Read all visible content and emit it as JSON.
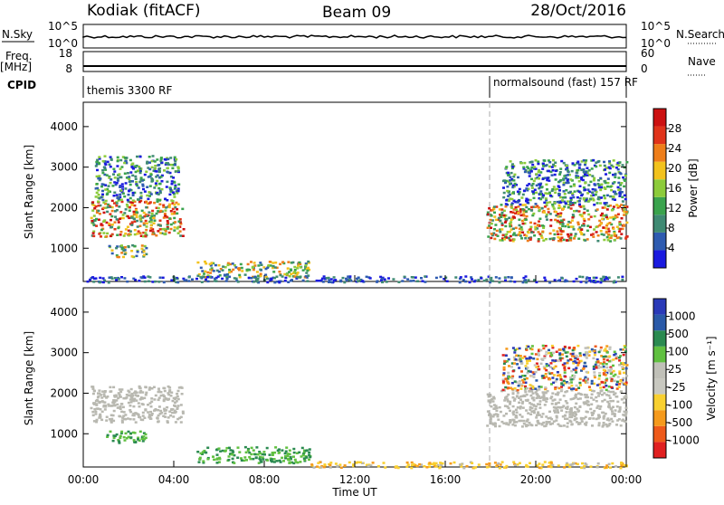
{
  "header": {
    "station": "Kodiak (fitACF)",
    "beam": "Beam 09",
    "date": "28/Oct/2016"
  },
  "top_panels": {
    "nsky_label": "N.Sky",
    "nsearch_label": "N.Search",
    "freq_label": "Freq.",
    "freq_unit": "[MHz]",
    "nave_label": "Nave",
    "cpid_label": "CPID",
    "nsky_ticks": [
      "10^5",
      "10^0"
    ],
    "nsearch_ticks": [
      "10^5",
      "10^0"
    ],
    "freq_ticks": [
      "18",
      "8"
    ],
    "nave_ticks": [
      "60",
      "0"
    ],
    "cpid_segments": [
      "themis 3300 RF",
      "normalsound (fast) 157 RF"
    ]
  },
  "colors": {
    "power": [
      "#1a1adf",
      "#2e5bb0",
      "#3f8a73",
      "#3aa34d",
      "#8ccb3a",
      "#f2c21d",
      "#ee7e1a",
      "#e0331a",
      "#cc1111"
    ],
    "velocity": [
      "#e02020",
      "#ee5a1a",
      "#f59a1c",
      "#f8d030",
      "#c8c8c0",
      "#c0c0b8",
      "#60c040",
      "#2a8a50",
      "#2a5aa8",
      "#2a3ab8"
    ],
    "ground": "#b8b8b0",
    "cpid_divider": "#aaaaaa"
  },
  "chart_data": [
    {
      "type": "heatmap",
      "name": "power",
      "ylabel": "Slant Range [km]",
      "colorbar_label": "Power [dB]",
      "colorbar_ticks": [
        "4",
        "8",
        "12",
        "16",
        "20",
        "24",
        "28"
      ],
      "y_ticks": [
        "1000",
        "2000",
        "3000",
        "4000"
      ],
      "xlim_hours": [
        0,
        24
      ],
      "ylim_km": [
        180,
        4600
      ],
      "echo_regions": [
        {
          "t_start": 0.3,
          "t_end": 4.4,
          "r_low": 1300,
          "r_high": 2200,
          "level": "high"
        },
        {
          "t_start": 1.0,
          "t_end": 2.8,
          "r_low": 800,
          "r_high": 1100,
          "level": "mid"
        },
        {
          "t_start": 0.5,
          "t_end": 4.2,
          "r_low": 2200,
          "r_high": 3300,
          "level": "scatter"
        },
        {
          "t_start": 5.0,
          "t_end": 10.0,
          "r_low": 300,
          "r_high": 700,
          "level": "mid"
        },
        {
          "t_start": 17.8,
          "t_end": 24.0,
          "r_low": 1200,
          "r_high": 2100,
          "level": "high"
        },
        {
          "t_start": 18.5,
          "t_end": 24.0,
          "r_low": 2100,
          "r_high": 3200,
          "level": "scatter"
        },
        {
          "t_start": 0.0,
          "t_end": 24.0,
          "r_low": 180,
          "r_high": 330,
          "level": "low"
        }
      ]
    },
    {
      "type": "heatmap",
      "name": "velocity",
      "ylabel": "Slant Range [km]",
      "colorbar_label": "Velocity [m s⁻¹]",
      "colorbar_ticks": [
        "-1000",
        "-500",
        "-100",
        "-25",
        "25",
        "100",
        "500",
        "1000"
      ],
      "y_ticks": [
        "1000",
        "2000",
        "3000",
        "4000"
      ],
      "xlim_hours": [
        0,
        24
      ],
      "ylim_km": [
        180,
        4600
      ],
      "xlabel": "Time UT",
      "x_ticks": [
        "00:00",
        "04:00",
        "08:00",
        "12:00",
        "16:00",
        "20:00",
        "00:00"
      ],
      "echo_regions": [
        {
          "t_start": 0.3,
          "t_end": 4.4,
          "r_low": 1300,
          "r_high": 2200,
          "v": "ground"
        },
        {
          "t_start": 1.0,
          "t_end": 2.8,
          "r_low": 800,
          "r_high": 1100,
          "v": "positive"
        },
        {
          "t_start": 5.0,
          "t_end": 10.0,
          "r_low": 300,
          "r_high": 700,
          "v": "positive"
        },
        {
          "t_start": 10.0,
          "t_end": 24.0,
          "r_low": 180,
          "r_high": 330,
          "v": "negative-low"
        },
        {
          "t_start": 17.8,
          "t_end": 24.0,
          "r_low": 1200,
          "r_high": 2100,
          "v": "ground"
        },
        {
          "t_start": 18.5,
          "t_end": 24.0,
          "r_low": 2100,
          "r_high": 3200,
          "v": "mixed"
        }
      ]
    }
  ]
}
